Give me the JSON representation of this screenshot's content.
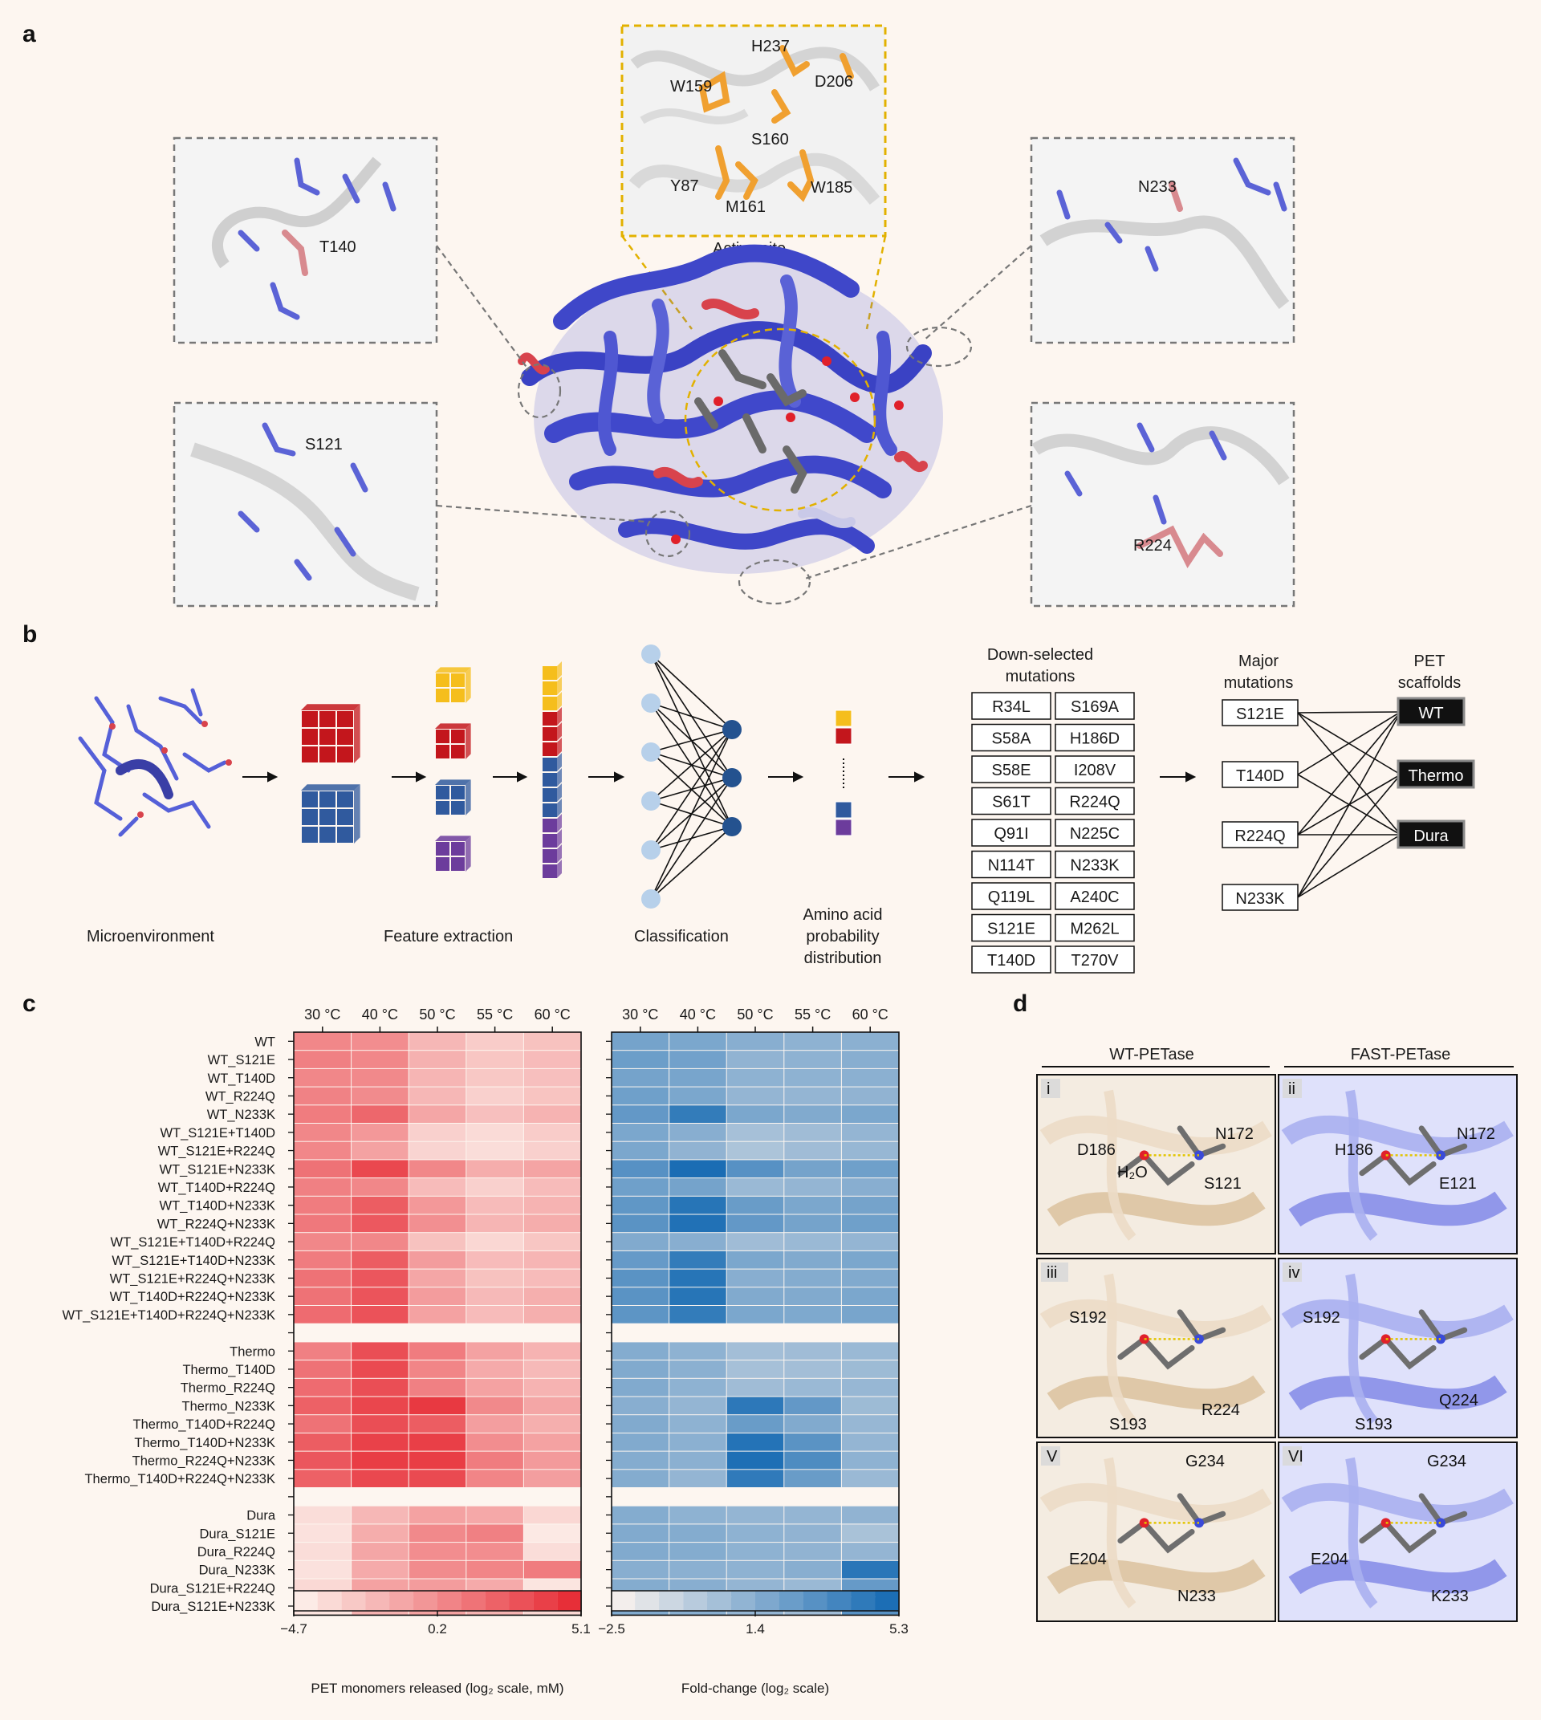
{
  "panels": {
    "a": "a",
    "b": "b",
    "c": "c",
    "d": "d"
  },
  "colors": {
    "protein_blue": "#3f47c9",
    "protein_red": "#d8434c",
    "active_orange": "#f0a030",
    "dashed_box": "#777777",
    "yellow_dash": "#e2b100",
    "heat_red": "#e8313a",
    "heat_blue": "#1c6fb8",
    "wt_tan": "#e8d4b8",
    "fast_lavender": "#a0a6ee",
    "background": "#fdf6f0"
  },
  "panel_a": {
    "active_site_caption": "Active site",
    "active_site_residues": [
      "H237",
      "W159",
      "D206",
      "S160",
      "Y87",
      "M161",
      "W185"
    ],
    "insets": {
      "top_left": "T140",
      "bottom_left": "S121",
      "top_right": "N233",
      "bottom_right": "R224"
    }
  },
  "panel_b": {
    "stages": [
      "Microenvironment",
      "Feature extraction",
      "Classification",
      "Amino acid probability distribution"
    ],
    "amino_caption_lines": [
      "Amino acid",
      "probability",
      "distribution"
    ],
    "downselected_title_lines": [
      "Down-selected",
      "mutations"
    ],
    "downselected": [
      [
        "R34L",
        "S169A"
      ],
      [
        "S58A",
        "H186D"
      ],
      [
        "S58E",
        "I208V"
      ],
      [
        "S61T",
        "R224Q"
      ],
      [
        "Q91I",
        "N225C"
      ],
      [
        "N114T",
        "N233K"
      ],
      [
        "Q119L",
        "A240C"
      ],
      [
        "S121E",
        "M262L"
      ],
      [
        "T140D",
        "T270V"
      ]
    ],
    "major_title_lines": [
      "Major",
      "mutations"
    ],
    "major": [
      "S121E",
      "T140D",
      "R224Q",
      "N233K"
    ],
    "scaffold_title_lines": [
      "PET",
      "scaffolds"
    ],
    "scaffolds": [
      "WT",
      "Thermo",
      "Dura"
    ]
  },
  "panel_c": {
    "chart_data": [
      {
        "type": "heatmap",
        "title": "",
        "columns": [
          "30 °C",
          "40 °C",
          "50 °C",
          "55 °C",
          "60 °C"
        ],
        "rows": [
          "WT",
          "WT_S121E",
          "WT_T140D",
          "WT_R224Q",
          "WT_N233K",
          "WT_S121E+T140D",
          "WT_S121E+R224Q",
          "WT_S121E+N233K",
          "WT_T140D+R224Q",
          "WT_T140D+N233K",
          "WT_R224Q+N233K",
          "WT_S121E+T140D+R224Q",
          "WT_S121E+T140D+N233K",
          "WT_S121E+R224Q+N233K",
          "WT_T140D+R224Q+N233K",
          "WT_S121E+T140D+R224Q+N233K",
          "Thermo",
          "Thermo_T140D",
          "Thermo_R224Q",
          "Thermo_N233K",
          "Thermo_T140D+R224Q",
          "Thermo_T140D+N233K",
          "Thermo_R224Q+N233K",
          "Thermo_T140D+R224Q+N233K",
          "Dura",
          "Dura_S121E",
          "Dura_R224Q",
          "Dura_N233K",
          "Dura_S121E+R224Q",
          "Dura_S121E+N233K"
        ],
        "groups": [
          16,
          8,
          6
        ],
        "values": [
          [
            0.5,
            0.2,
            -1.8,
            -2.8,
            -2.3
          ],
          [
            0.8,
            0.5,
            -1.5,
            -2.5,
            -2.0
          ],
          [
            0.5,
            0.4,
            -1.7,
            -2.6,
            -2.2
          ],
          [
            0.7,
            0.3,
            -1.8,
            -3.0,
            -2.4
          ],
          [
            1.0,
            2.0,
            -1.0,
            -2.2,
            -1.6
          ],
          [
            0.5,
            -0.3,
            -3.0,
            -3.5,
            -2.8
          ],
          [
            0.5,
            -0.8,
            -3.2,
            -3.6,
            -3.0
          ],
          [
            1.5,
            3.5,
            0.5,
            -1.3,
            -0.9
          ],
          [
            0.8,
            0.5,
            -2.0,
            -3.0,
            -2.0
          ],
          [
            1.0,
            2.5,
            -0.3,
            -2.0,
            -1.6
          ],
          [
            1.2,
            2.7,
            0.1,
            -1.7,
            -1.3
          ],
          [
            0.5,
            0.5,
            -2.3,
            -3.3,
            -2.5
          ],
          [
            1.0,
            2.5,
            -0.5,
            -2.0,
            -1.7
          ],
          [
            1.5,
            2.8,
            -1.0,
            -2.3,
            -2.0
          ],
          [
            1.5,
            2.9,
            -0.5,
            -1.9,
            -1.4
          ],
          [
            1.8,
            3.0,
            -0.8,
            -2.0,
            -1.4
          ],
          [
            0.8,
            3.2,
            1.0,
            -0.8,
            -1.6
          ],
          [
            1.5,
            3.4,
            0.6,
            -1.2,
            -1.9
          ],
          [
            1.8,
            3.2,
            0.8,
            -0.8,
            -1.6
          ],
          [
            2.3,
            3.6,
            4.2,
            0.4,
            -1.0
          ],
          [
            1.5,
            3.2,
            2.5,
            -0.6,
            -1.4
          ],
          [
            2.5,
            3.8,
            3.9,
            0.2,
            -0.8
          ],
          [
            2.8,
            4.0,
            4.0,
            1.0,
            -0.4
          ],
          [
            2.3,
            3.5,
            3.4,
            0.6,
            -0.6
          ]
        ],
        "values_dura": [
          [
            -3.6,
            -1.8,
            -0.8,
            -1.1,
            -3.3
          ],
          [
            -3.8,
            -1.3,
            0.4,
            0.8,
            -4.2
          ],
          [
            -3.6,
            -1.0,
            0.2,
            0.2,
            -3.6
          ],
          [
            -3.8,
            -1.2,
            0.3,
            0.6,
            1.0
          ],
          [
            -3.4,
            -0.8,
            -0.5,
            -1.2,
            -4.0
          ],
          [
            -3.9,
            -1.5,
            -0.8,
            -1.6,
            -3.3
          ]
        ],
        "colorbar": {
          "min": -4.7,
          "mid": 0.2,
          "max": 5.1,
          "ticks": [
            "−4.7",
            "0.2",
            "5.1"
          ]
        },
        "xlabel": "PET monomers released (log₂ scale, mM)"
      },
      {
        "type": "heatmap",
        "title": "",
        "columns": [
          "30 °C",
          "40 °C",
          "50 °C",
          "55 °C",
          "60 °C"
        ],
        "values": [
          [
            2.0,
            1.8,
            1.4,
            1.2,
            1.3
          ],
          [
            2.3,
            2.1,
            1.1,
            1.2,
            1.4
          ],
          [
            2.0,
            1.9,
            1.2,
            1.2,
            1.3
          ],
          [
            2.2,
            1.8,
            1.0,
            1.0,
            1.1
          ],
          [
            2.6,
            4.2,
            1.8,
            1.6,
            1.8
          ],
          [
            1.8,
            1.4,
            0.4,
            0.6,
            1.0
          ],
          [
            1.8,
            1.1,
            0.2,
            0.6,
            0.9
          ],
          [
            3.0,
            5.0,
            3.0,
            2.0,
            2.2
          ],
          [
            2.2,
            2.0,
            0.8,
            1.0,
            1.4
          ],
          [
            2.7,
            4.6,
            2.4,
            1.8,
            2.0
          ],
          [
            2.9,
            4.8,
            2.6,
            2.0,
            2.2
          ],
          [
            1.6,
            1.4,
            0.6,
            0.8,
            1.0
          ],
          [
            2.5,
            4.2,
            1.8,
            1.6,
            1.8
          ],
          [
            2.9,
            4.6,
            1.4,
            1.5,
            1.6
          ],
          [
            2.9,
            4.6,
            1.6,
            1.6,
            1.8
          ],
          [
            2.8,
            4.2,
            1.8,
            1.7,
            1.9
          ],
          [
            1.5,
            1.2,
            0.5,
            0.6,
            0.8
          ],
          [
            1.6,
            1.3,
            0.4,
            0.5,
            0.7
          ],
          [
            1.6,
            1.2,
            0.6,
            0.8,
            0.9
          ],
          [
            1.4,
            1.0,
            4.4,
            2.6,
            0.7
          ],
          [
            1.6,
            1.2,
            2.4,
            1.6,
            0.9
          ],
          [
            1.6,
            1.3,
            4.7,
            2.9,
            1.0
          ],
          [
            1.5,
            1.3,
            4.9,
            3.3,
            1.2
          ],
          [
            1.5,
            1.0,
            4.3,
            2.4,
            0.8
          ]
        ],
        "values_dura": [
          [
            1.5,
            1.2,
            1.0,
            1.0,
            1.1
          ],
          [
            1.6,
            1.5,
            1.2,
            1.1,
            0.3
          ],
          [
            1.6,
            1.5,
            1.2,
            1.1,
            1.0
          ],
          [
            1.4,
            1.3,
            1.2,
            1.4,
            4.5
          ],
          [
            1.5,
            1.4,
            1.0,
            0.8,
            2.5
          ],
          [
            1.6,
            1.4,
            1.0,
            0.6,
            3.0
          ]
        ],
        "colorbar": {
          "min": -2.5,
          "mid": 1.4,
          "max": 5.3,
          "ticks": [
            "−2.5",
            "1.4",
            "5.3"
          ]
        },
        "xlabel": "Fold-change (log₂ scale)"
      }
    ]
  },
  "panel_d": {
    "headers": [
      "WT-PETase",
      "FAST-PETase"
    ],
    "tiles": [
      {
        "roman": "i",
        "labels": [
          "D186",
          "H₂O",
          "N172",
          "S121"
        ]
      },
      {
        "roman": "ii",
        "labels": [
          "H186",
          "N172",
          "E121"
        ]
      },
      {
        "roman": "iii",
        "labels": [
          "S192",
          "S193",
          "R224"
        ]
      },
      {
        "roman": "iv",
        "labels": [
          "S192",
          "S193",
          "Q224"
        ]
      },
      {
        "roman": "V",
        "labels": [
          "G234",
          "E204",
          "N233"
        ]
      },
      {
        "roman": "VI",
        "labels": [
          "G234",
          "E204",
          "K233"
        ]
      }
    ]
  }
}
